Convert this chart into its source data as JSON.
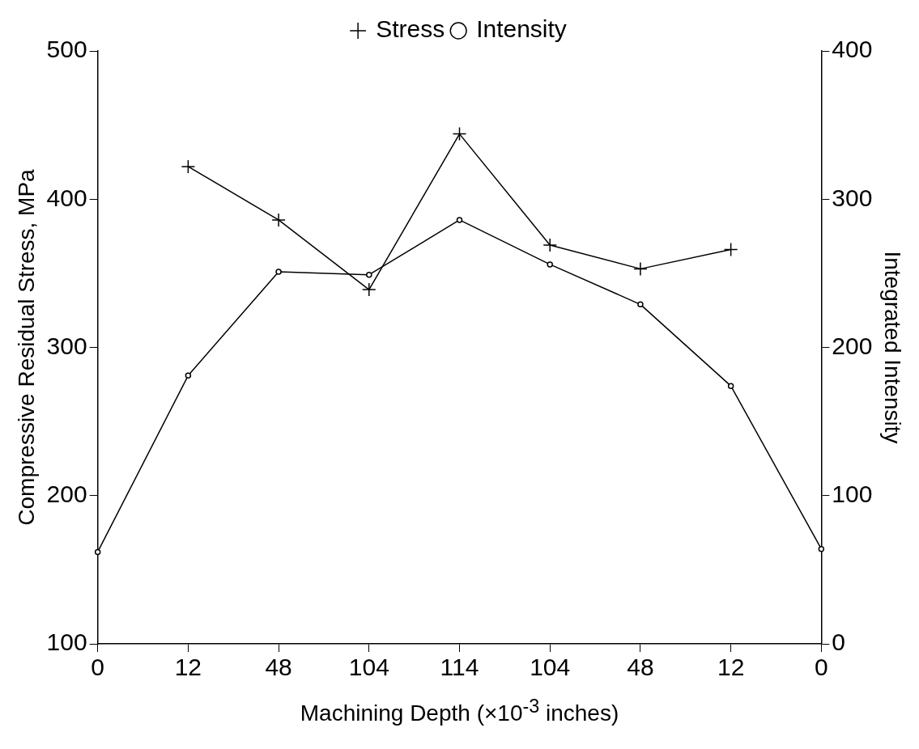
{
  "chart_data": {
    "type": "line",
    "xlabel": "Machining Depth (×10$^{-3}$ inches)",
    "ylabel": "Compressive Residual Stress, MPa",
    "y2label": "Integrated Intensity",
    "categories": [
      "0",
      "12",
      "48",
      "104",
      "114",
      "104",
      "48",
      "12",
      "0"
    ],
    "series": [
      {
        "name": "Stress",
        "color": "#000000",
        "marker": "cross",
        "values": [
          null,
          422,
          386,
          339,
          444,
          369,
          353,
          366,
          null
        ]
      },
      {
        "name": "Intensity",
        "color": "#000000",
        "marker": "circle",
        "axis": "y2",
        "values": [
          62,
          181,
          251,
          249,
          286,
          256,
          229,
          174,
          64
        ]
      }
    ],
    "ylim": [
      100,
      500
    ],
    "yticks": [
      100,
      200,
      300,
      400,
      500
    ],
    "y2lim": [
      0,
      400
    ],
    "y2ticks": [
      0,
      100,
      200,
      300,
      400
    ],
    "grid": false,
    "legend": "top",
    "line_style": "solid"
  }
}
